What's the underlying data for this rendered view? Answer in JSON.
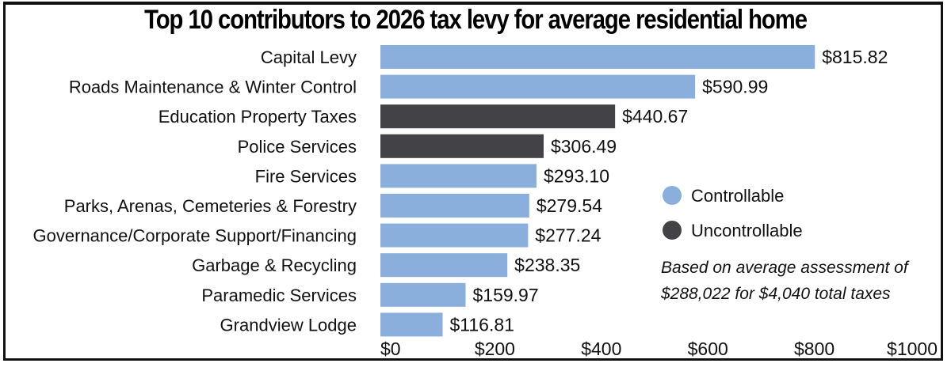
{
  "chart_data": {
    "type": "bar",
    "orientation": "horizontal",
    "title": "Top 10 contributors to 2026 tax levy for average residential home",
    "xlabel": "",
    "ylabel": "",
    "xlim": [
      0,
      1000
    ],
    "x_ticks": [
      0,
      200,
      400,
      600,
      800,
      1000
    ],
    "x_tick_labels": [
      "$0",
      "$200",
      "$400",
      "$600",
      "$800",
      "$1000"
    ],
    "grid": false,
    "categories": [
      "Capital Levy",
      "Roads Maintenance & Winter Control",
      "Education Property Taxes",
      "Police Services",
      "Fire Services",
      "Parks, Arenas, Cemeteries & Forestry",
      "Governance/Corporate Support/Financing",
      "Garbage & Recycling",
      "Paramedic Services",
      "Grandview Lodge"
    ],
    "values": [
      815.82,
      590.99,
      440.67,
      306.49,
      293.1,
      279.54,
      277.24,
      238.35,
      159.97,
      116.81
    ],
    "value_labels": [
      "$815.82",
      "$590.99",
      "$440.67",
      "$306.49",
      "$293.10",
      "$279.54",
      "$277.24",
      "$238.35",
      "$159.97",
      "$116.81"
    ],
    "groups": [
      "Controllable",
      "Controllable",
      "Uncontrollable",
      "Uncontrollable",
      "Controllable",
      "Controllable",
      "Controllable",
      "Controllable",
      "Controllable",
      "Controllable"
    ],
    "legend": {
      "placement": "right",
      "entries": [
        {
          "name": "Controllable",
          "color": "#8aafdc"
        },
        {
          "name": "Uncontrollable",
          "color": "#434247"
        }
      ]
    },
    "annotation": [
      "Based on average assessment of",
      "$288,022 for $4,040 total taxes"
    ]
  },
  "colors": {
    "controllable": "#8aafdc",
    "uncontrollable": "#434247",
    "text": "#111111"
  }
}
